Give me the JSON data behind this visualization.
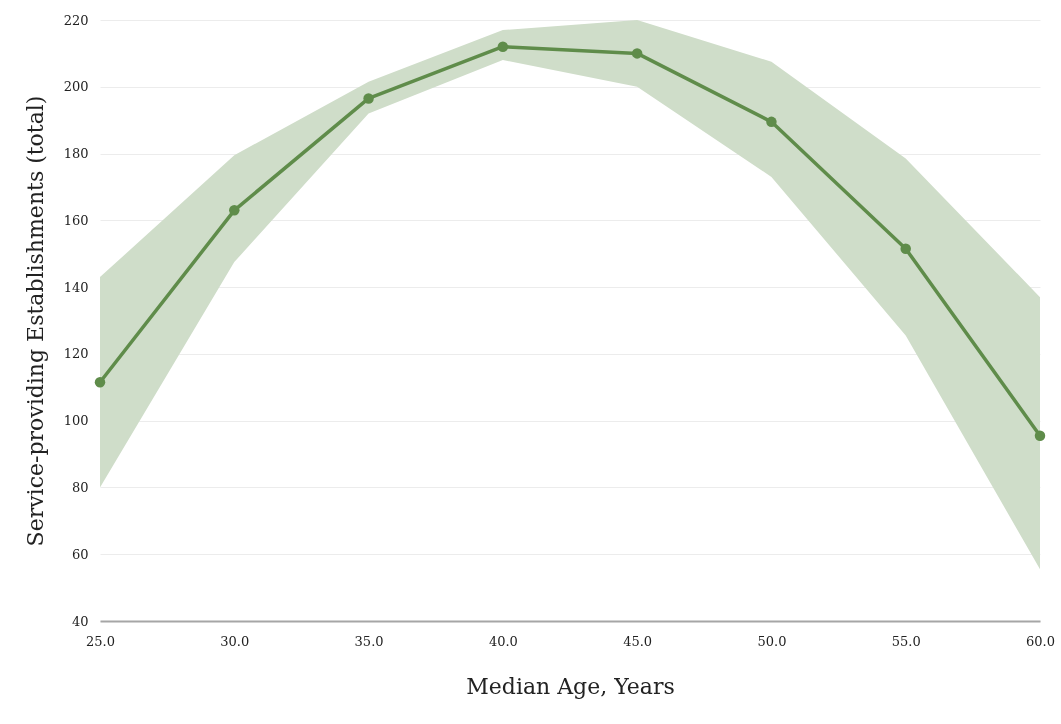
{
  "chart_data": {
    "type": "line",
    "xlabel": "Median Age, Years",
    "ylabel": "Service-providing Establishments (total)",
    "x": [
      25,
      30,
      35,
      40,
      45,
      50,
      55,
      60
    ],
    "series": [
      {
        "color": "#5f8c4a",
        "values": [
          111.5,
          163,
          196.5,
          212,
          210,
          189.5,
          151.5,
          95.5
        ],
        "lower": [
          80,
          147.5,
          192,
          208,
          200,
          173,
          125.5,
          55.5
        ],
        "upper": [
          143,
          179.5,
          201.5,
          217,
          220,
          207.5,
          178.5,
          137
        ]
      }
    ],
    "xlim": [
      25,
      60
    ],
    "xticks": [
      {
        "value": 25,
        "label": "25.0"
      },
      {
        "value": 30,
        "label": "30.0"
      },
      {
        "value": 35,
        "label": "35.0"
      },
      {
        "value": 40,
        "label": "40.0"
      },
      {
        "value": 45,
        "label": "45.0"
      },
      {
        "value": 50,
        "label": "50.0"
      },
      {
        "value": 55,
        "label": "55.0"
      },
      {
        "value": 60,
        "label": "60.0"
      }
    ],
    "ylim": [
      40,
      220
    ],
    "yticks": [
      40,
      60,
      80,
      100,
      120,
      140,
      160,
      180,
      200,
      220
    ],
    "grid": "y",
    "marker": "circle",
    "line_style": "solid"
  }
}
